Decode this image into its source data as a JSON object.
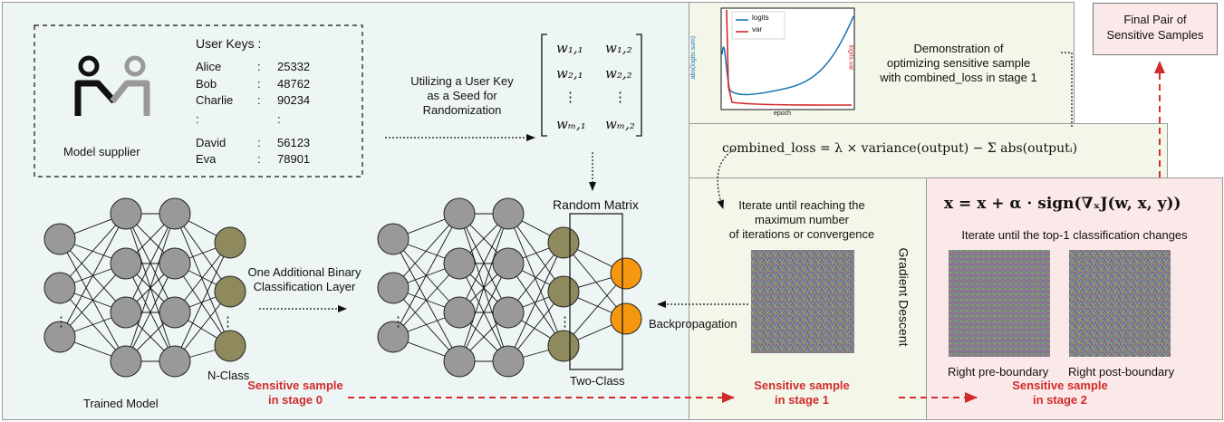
{
  "supplier": {
    "label": "Model supplier",
    "keys_title": "User Keys :",
    "users": [
      {
        "name": "Alice",
        "sep": ":",
        "key": "25332"
      },
      {
        "name": "Bob",
        "sep": ":",
        "key": "48762"
      },
      {
        "name": "Charlie",
        "sep": ":",
        "key": "90234"
      },
      {
        "name": "David",
        "sep": ":",
        "key": "56123"
      },
      {
        "name": "Eva",
        "sep": ":",
        "key": "78901"
      }
    ],
    "ellipsis": ":"
  },
  "seed_caption": {
    "line1": "Utilizing a User Key",
    "line2": "as a Seed for",
    "line3": "Randomization"
  },
  "matrix": {
    "label": "Random Matrix",
    "entries": [
      "w₁,₁",
      "w₁,₂",
      "w₂,₁",
      "w₂,₂",
      "⋮",
      "⋮",
      "wₘ,₁",
      "wₘ,₂"
    ]
  },
  "networks": {
    "trained_label": "Trained Model",
    "nclass_label": "N-Class",
    "twoclass_label": "Two-Class",
    "dots": "⋮",
    "add_layer_line1": "One Additional Binary",
    "add_layer_line2": "Classification Layer",
    "backprop": "Backpropagation"
  },
  "stage0": {
    "line1": "Sensitive sample",
    "line2": "in stage 0"
  },
  "demo": {
    "line1": "Demonstration of",
    "line2": "optimizing sensitive sample",
    "line3": "with combined_loss in stage 1",
    "plot": {
      "legend": [
        "logits",
        "var"
      ],
      "ylabel_left": "abs(logits.sum)",
      "ylabel_right": "logits.var",
      "xlabel": "epoch"
    }
  },
  "formula_loss": "combined_loss = λ × variance(output) − Σ abs(outputᵢ)",
  "stage1": {
    "iterate_line1": "Iterate until reaching the",
    "iterate_line2": "maximum number",
    "iterate_line3": "of iterations or convergence",
    "gradient_descent": "Gradient Descent",
    "caption1": "Sensitive sample",
    "caption2": "in stage 1"
  },
  "stage2": {
    "formula": "x = x + α · sign(∇ₓJ(w, x, y))",
    "iterate": "Iterate until the top-1 classification changes",
    "pre": "Right pre-boundary",
    "post": "Right post-boundary",
    "caption1": "Sensitive sample",
    "caption2": "in stage 2"
  },
  "final": {
    "line1": "Final Pair of",
    "line2": "Sensitive Samples"
  },
  "colors": {
    "left_bg": "#eef5f5",
    "stage1_bg": "#f3f7ea",
    "stage2_bg": "#fbe8e8",
    "node_gray": "#999999",
    "node_olive": "#8e8a5e",
    "node_orange": "#f5970f",
    "accent_red": "#d22b2b",
    "line_blue": "#1f77b4",
    "line_red": "#d62728"
  }
}
